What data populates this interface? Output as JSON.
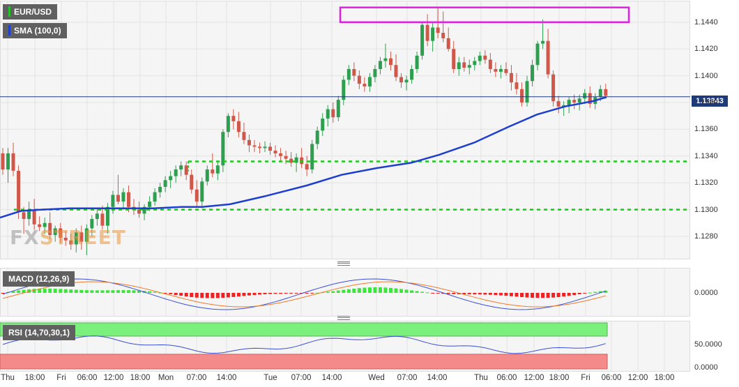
{
  "header": {
    "symbol": "EUR/USD",
    "indicator_sma": "SMA (100,0)",
    "indicator_macd": "MACD (12,26,9)",
    "indicator_rsi": "RSI (14,70,30,1)",
    "current_price": "1.13843"
  },
  "watermark": {
    "part1": "FX",
    "part2": "STREET"
  },
  "colors": {
    "up": "#2e9e4f",
    "down": "#d0584a",
    "sma": "#1d3ecf",
    "support": "#22c322",
    "resistance_box": "#e51ee5",
    "price_line": "#1f3a7a"
  },
  "chart_data": [
    {
      "type": "candlestick",
      "title": "EUR/USD",
      "y_ticks": [
        "1.1280",
        "1.1300",
        "1.1320",
        "1.1340",
        "1.1360",
        "1.1380",
        "1.1400",
        "1.1420",
        "1.1440"
      ],
      "x_ticks": [
        "Thu",
        "18:00",
        "Fri",
        "06:00",
        "12:00",
        "18:00",
        "Mon",
        "07:00",
        "14:00",
        "Tue",
        "07:00",
        "14:00",
        "Wed",
        "07:00",
        "14:00",
        "Thu",
        "06:00",
        "12:00",
        "18:00",
        "Fri",
        "06:00",
        "12:00",
        "18:00"
      ],
      "ylim": [
        1.1266,
        1.1452
      ],
      "series": [
        {
          "name": "SMA (100,0)",
          "points": [
            [
              0,
              1.1294
            ],
            [
              30,
              1.1299
            ],
            [
              60,
              1.13
            ],
            [
              100,
              1.1301
            ],
            [
              160,
              1.1301
            ],
            [
              220,
              1.1301
            ],
            [
              260,
              1.1302
            ],
            [
              290,
              1.1302
            ],
            [
              330,
              1.1304
            ],
            [
              380,
              1.131
            ],
            [
              440,
              1.1318
            ],
            [
              490,
              1.1326
            ],
            [
              540,
              1.1331
            ],
            [
              590,
              1.1335
            ],
            [
              630,
              1.1341
            ],
            [
              680,
              1.135
            ],
            [
              730,
              1.1362
            ],
            [
              770,
              1.1371
            ],
            [
              810,
              1.1377
            ],
            [
              850,
              1.1381
            ],
            [
              870,
              1.1384
            ]
          ]
        }
      ],
      "annotations": {
        "price_line": 1.13843,
        "support_levels": [
          1.1336,
          1.13
        ],
        "resistance_zone": [
          1.144,
          1.1451
        ]
      },
      "candles": [
        [
          1.1342,
          1.1346,
          1.1326,
          1.133
        ],
        [
          1.133,
          1.1346,
          1.132,
          1.1342
        ],
        [
          1.1342,
          1.135,
          1.1325,
          1.1329
        ],
        [
          1.1329,
          1.1333,
          1.1293,
          1.1298
        ],
        [
          1.1298,
          1.1302,
          1.1282,
          1.1293
        ],
        [
          1.1293,
          1.1306,
          1.1288,
          1.1299
        ],
        [
          1.1299,
          1.1308,
          1.1285,
          1.1289
        ],
        [
          1.1289,
          1.1295,
          1.1284,
          1.1287
        ],
        [
          1.1287,
          1.1294,
          1.1282,
          1.129
        ],
        [
          1.129,
          1.1298,
          1.1278,
          1.1281
        ],
        [
          1.1281,
          1.1288,
          1.1276,
          1.1286
        ],
        [
          1.1286,
          1.129,
          1.1275,
          1.1279
        ],
        [
          1.1279,
          1.1284,
          1.1273,
          1.1277
        ],
        [
          1.1277,
          1.1282,
          1.127,
          1.1274
        ],
        [
          1.1274,
          1.1286,
          1.1268,
          1.1283
        ],
        [
          1.1283,
          1.1288,
          1.127,
          1.1276
        ],
        [
          1.1276,
          1.1289,
          1.1266,
          1.1286
        ],
        [
          1.1286,
          1.1296,
          1.128,
          1.1293
        ],
        [
          1.1293,
          1.13,
          1.1288,
          1.1297
        ],
        [
          1.1297,
          1.1303,
          1.1285,
          1.1288
        ],
        [
          1.1288,
          1.1305,
          1.1282,
          1.1302
        ],
        [
          1.1302,
          1.1314,
          1.1297,
          1.1311
        ],
        [
          1.1311,
          1.1326,
          1.1304,
          1.1306
        ],
        [
          1.1306,
          1.1316,
          1.13,
          1.1313
        ],
        [
          1.1313,
          1.1318,
          1.1298,
          1.1302
        ],
        [
          1.1302,
          1.1308,
          1.1296,
          1.13
        ],
        [
          1.13,
          1.1306,
          1.1294,
          1.1297
        ],
        [
          1.1297,
          1.1304,
          1.1292,
          1.1302
        ],
        [
          1.1302,
          1.131,
          1.1299,
          1.1306
        ],
        [
          1.1306,
          1.1316,
          1.1303,
          1.1313
        ],
        [
          1.1313,
          1.132,
          1.1309,
          1.1317
        ],
        [
          1.1317,
          1.1325,
          1.1313,
          1.1322
        ],
        [
          1.1322,
          1.1329,
          1.1316,
          1.1325
        ],
        [
          1.1325,
          1.1333,
          1.132,
          1.133
        ],
        [
          1.133,
          1.1336,
          1.1325,
          1.1333
        ],
        [
          1.1333,
          1.1336,
          1.1322,
          1.1326
        ],
        [
          1.1326,
          1.133,
          1.1312,
          1.1315
        ],
        [
          1.1315,
          1.1322,
          1.1302,
          1.1306
        ],
        [
          1.1306,
          1.1324,
          1.1301,
          1.1321
        ],
        [
          1.1321,
          1.1333,
          1.1318,
          1.133
        ],
        [
          1.133,
          1.1342,
          1.1324,
          1.1327
        ],
        [
          1.1327,
          1.1336,
          1.1322,
          1.1333
        ],
        [
          1.1333,
          1.136,
          1.1328,
          1.1358
        ],
        [
          1.1358,
          1.1372,
          1.1354,
          1.137
        ],
        [
          1.137,
          1.1375,
          1.136,
          1.1366
        ],
        [
          1.1366,
          1.1373,
          1.1354,
          1.1358
        ],
        [
          1.1358,
          1.1365,
          1.1349,
          1.1352
        ],
        [
          1.1352,
          1.1356,
          1.1343,
          1.1348
        ],
        [
          1.1348,
          1.1352,
          1.1343,
          1.1347
        ],
        [
          1.1347,
          1.135,
          1.1342,
          1.1346
        ],
        [
          1.1346,
          1.1351,
          1.1343,
          1.1347
        ],
        [
          1.1347,
          1.135,
          1.1341,
          1.1344
        ],
        [
          1.1344,
          1.1348,
          1.1339,
          1.1342
        ],
        [
          1.1342,
          1.1346,
          1.1336,
          1.134
        ],
        [
          1.134,
          1.1344,
          1.1334,
          1.1338
        ],
        [
          1.1338,
          1.1343,
          1.1332,
          1.1335
        ],
        [
          1.1335,
          1.1342,
          1.1328,
          1.1339
        ],
        [
          1.1339,
          1.1346,
          1.1331,
          1.1334
        ],
        [
          1.1334,
          1.134,
          1.1325,
          1.133
        ],
        [
          1.133,
          1.1352,
          1.1327,
          1.1349
        ],
        [
          1.1349,
          1.1362,
          1.1345,
          1.1359
        ],
        [
          1.1359,
          1.1372,
          1.1355,
          1.1368
        ],
        [
          1.1368,
          1.1378,
          1.1362,
          1.1375
        ],
        [
          1.1375,
          1.138,
          1.1365,
          1.1369
        ],
        [
          1.1369,
          1.1385,
          1.1366,
          1.1382
        ],
        [
          1.1382,
          1.14,
          1.1378,
          1.1397
        ],
        [
          1.1397,
          1.1408,
          1.1393,
          1.1405
        ],
        [
          1.1405,
          1.141,
          1.1396,
          1.14
        ],
        [
          1.14,
          1.1404,
          1.139,
          1.1394
        ],
        [
          1.1394,
          1.1399,
          1.1388,
          1.1392
        ],
        [
          1.1392,
          1.1402,
          1.1388,
          1.1399
        ],
        [
          1.1399,
          1.1408,
          1.1395,
          1.1405
        ],
        [
          1.1405,
          1.1414,
          1.1401,
          1.1411
        ],
        [
          1.1411,
          1.1424,
          1.1406,
          1.1413
        ],
        [
          1.1413,
          1.1418,
          1.1404,
          1.1408
        ],
        [
          1.1408,
          1.1416,
          1.1396,
          1.1399
        ],
        [
          1.1399,
          1.1402,
          1.1391,
          1.1395
        ],
        [
          1.1395,
          1.14,
          1.1389,
          1.1397
        ],
        [
          1.1397,
          1.1408,
          1.1394,
          1.1405
        ],
        [
          1.1405,
          1.1418,
          1.1402,
          1.1415
        ],
        [
          1.1415,
          1.144,
          1.1412,
          1.1438
        ],
        [
          1.1438,
          1.1446,
          1.1422,
          1.1426
        ],
        [
          1.1426,
          1.144,
          1.1418,
          1.1436
        ],
        [
          1.1436,
          1.1451,
          1.1428,
          1.1432
        ],
        [
          1.1432,
          1.1448,
          1.1425,
          1.1428
        ],
        [
          1.1428,
          1.1436,
          1.1418,
          1.142
        ],
        [
          1.142,
          1.1426,
          1.1402,
          1.1405
        ],
        [
          1.1405,
          1.1414,
          1.14,
          1.141
        ],
        [
          1.141,
          1.1414,
          1.1403,
          1.1406
        ],
        [
          1.1406,
          1.1412,
          1.1401,
          1.1408
        ],
        [
          1.1408,
          1.1414,
          1.1404,
          1.1411
        ],
        [
          1.1411,
          1.1418,
          1.1408,
          1.1415
        ],
        [
          1.1415,
          1.1419,
          1.1409,
          1.1412
        ],
        [
          1.1412,
          1.1417,
          1.1402,
          1.1405
        ],
        [
          1.1405,
          1.141,
          1.1399,
          1.1403
        ],
        [
          1.1403,
          1.1408,
          1.1398,
          1.1405
        ],
        [
          1.1405,
          1.141,
          1.14,
          1.1402
        ],
        [
          1.1402,
          1.1408,
          1.1389,
          1.1395
        ],
        [
          1.1395,
          1.1402,
          1.1386,
          1.139
        ],
        [
          1.139,
          1.1395,
          1.1377,
          1.138
        ],
        [
          1.138,
          1.14,
          1.1377,
          1.1396
        ],
        [
          1.1396,
          1.1412,
          1.1392,
          1.1408
        ],
        [
          1.1408,
          1.1426,
          1.1404,
          1.1424
        ],
        [
          1.1424,
          1.1442,
          1.142,
          1.1426
        ],
        [
          1.1426,
          1.1435,
          1.1398,
          1.1401
        ],
        [
          1.1401,
          1.1404,
          1.1377,
          1.1381
        ],
        [
          1.1381,
          1.1385,
          1.1372,
          1.1377
        ],
        [
          1.1377,
          1.1381,
          1.137,
          1.1378
        ],
        [
          1.1378,
          1.1384,
          1.1372,
          1.1382
        ],
        [
          1.1382,
          1.1386,
          1.1375,
          1.138
        ],
        [
          1.138,
          1.1386,
          1.1374,
          1.1383
        ],
        [
          1.1383,
          1.139,
          1.1379,
          1.1387
        ],
        [
          1.1387,
          1.1392,
          1.1376,
          1.1379
        ],
        [
          1.1379,
          1.1387,
          1.1375,
          1.1384
        ],
        [
          1.1384,
          1.1393,
          1.1381,
          1.139
        ],
        [
          1.139,
          1.1394,
          1.1383,
          1.1385
        ]
      ]
    },
    {
      "type": "line",
      "title": "MACD (12,26,9)",
      "y_ticks": [
        "0.0000"
      ]
    },
    {
      "type": "line",
      "title": "RSI (14,70,30,1)",
      "y_ticks": [
        "50.0000",
        "0.0000"
      ]
    }
  ]
}
